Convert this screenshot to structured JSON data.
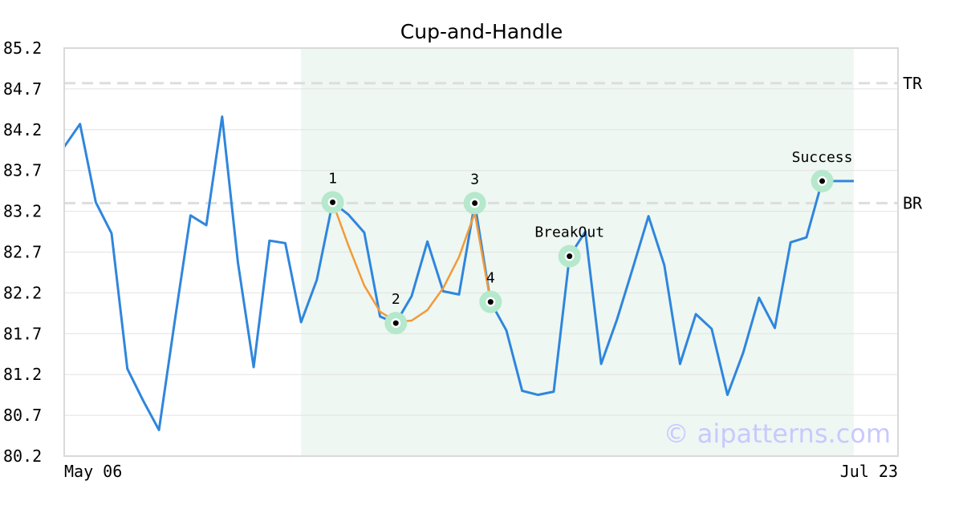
{
  "chart_data": {
    "type": "line",
    "title": "Cup-and-Handle",
    "x_tick_labels": [
      "May 06",
      "Jul 23"
    ],
    "y_ticks": [
      85.2,
      84.7,
      84.2,
      83.7,
      83.2,
      82.7,
      82.2,
      81.7,
      81.2,
      80.7,
      80.2
    ],
    "ylim": [
      80.2,
      85.2
    ],
    "grid": true,
    "series": [
      {
        "color": "#2f86dd",
        "values": [
          83.99,
          84.27,
          83.31,
          82.93,
          81.27,
          80.88,
          80.52,
          81.85,
          83.15,
          83.03,
          84.36,
          82.57,
          81.29,
          82.84,
          82.81,
          81.84,
          82.36,
          83.31,
          83.16,
          82.94,
          81.91,
          81.83,
          82.16,
          82.83,
          82.22,
          82.18,
          83.3,
          82.09,
          81.74,
          81.0,
          80.95,
          80.99,
          82.65,
          82.95,
          81.33,
          81.87,
          82.5,
          83.14,
          82.54,
          81.33,
          81.94,
          81.76,
          80.95,
          81.47,
          82.14,
          81.77,
          82.82,
          82.88,
          83.57,
          83.57,
          83.57
        ]
      },
      {
        "color": "#f29a38",
        "values": [
          83.31,
          82.78,
          82.29,
          81.97,
          81.85,
          81.86,
          81.99,
          82.26,
          82.64,
          83.18,
          82.09
        ],
        "start_index": 17
      }
    ],
    "highlight_range": [
      15,
      50
    ],
    "reference_lines": [
      {
        "label": "TR",
        "value": 84.77
      },
      {
        "label": "BR",
        "value": 83.3
      }
    ],
    "points": [
      {
        "label": "1",
        "index": 17,
        "value": 83.31
      },
      {
        "label": "2",
        "index": 21,
        "value": 81.83
      },
      {
        "label": "3",
        "index": 26,
        "value": 83.3
      },
      {
        "label": "4",
        "index": 27,
        "value": 82.09
      },
      {
        "label": "BreakOut",
        "index": 32,
        "value": 82.65
      },
      {
        "label": "Success",
        "index": 48,
        "value": 83.57
      }
    ],
    "colors": {
      "highlight": "#eef7f2",
      "marker_halo": "#b5e8cc",
      "grid": "#e2e2e2",
      "reference_line": "#dddddd",
      "frame": "#d9d9d9"
    },
    "watermark": "© aipatterns.com"
  }
}
